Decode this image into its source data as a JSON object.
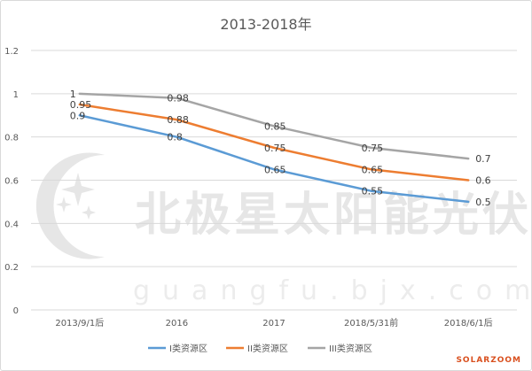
{
  "chart_data": {
    "type": "line",
    "title": "2013-2018年",
    "categories": [
      "2013/9/1后",
      "2016",
      "2017",
      "2018/5/31前",
      "2018/6/1后"
    ],
    "ylim": [
      0,
      1.2
    ],
    "yticks": [
      "0",
      "0.2",
      "0.4",
      "0.6",
      "0.8",
      "1",
      "1.2"
    ],
    "grid": true,
    "legend": "bottom",
    "series": [
      {
        "name": "I类资源区",
        "color": "#5b9bd5",
        "values": [
          0.9,
          0.8,
          0.65,
          0.55,
          0.5
        ],
        "labels": [
          "0.9",
          "0.8",
          "0.65",
          "0.55",
          "0.5"
        ]
      },
      {
        "name": "II类资源区",
        "color": "#ed7d31",
        "values": [
          0.95,
          0.88,
          0.75,
          0.65,
          0.6
        ],
        "labels": [
          "0.95",
          "0.88",
          "0.75",
          "0.65",
          "0.6"
        ]
      },
      {
        "name": "III类资源区",
        "color": "#a5a5a5",
        "values": [
          1,
          0.98,
          0.85,
          0.75,
          0.7
        ],
        "labels": [
          "1",
          "0.98",
          "0.85",
          "0.75",
          "0.7"
        ]
      }
    ]
  },
  "watermark": {
    "text": "北极星太阳能光伏网",
    "url": "guangfu.bjx.com.cn"
  },
  "brand": "SOLARZOOM"
}
